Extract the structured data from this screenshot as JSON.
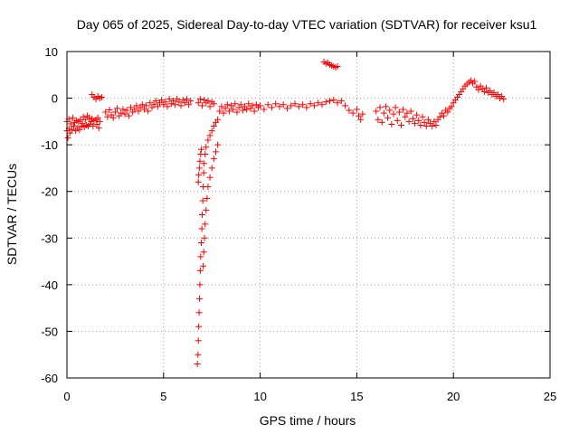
{
  "chart_data": {
    "type": "scatter",
    "title": "Day 065 of 2025, Sidereal Day-to-day VTEC variation (SDTVAR) for receiver ksu1",
    "xlabel": "GPS time / hours",
    "ylabel": "SDTVAR / TECUs",
    "xlim": [
      0,
      25
    ],
    "ylim": [
      -60,
      10
    ],
    "xticks": [
      0,
      5,
      10,
      15,
      20,
      25
    ],
    "yticks": [
      10,
      0,
      -10,
      -20,
      -30,
      -40,
      -50,
      -60
    ],
    "xtick_labels": [
      "0",
      "5",
      "10",
      "15",
      "20",
      "25"
    ],
    "ytick_labels": [
      "10",
      "0",
      "-10",
      "-20",
      "-30",
      "-40",
      "-50",
      "-60"
    ],
    "grid": true,
    "marker": "+",
    "series": [
      {
        "name": "main trace",
        "color": "#ff0000",
        "points": [
          [
            0.0,
            -7.0
          ],
          [
            0.0,
            -5.0
          ],
          [
            0.05,
            -8.5
          ],
          [
            0.1,
            -6.5
          ],
          [
            0.1,
            -4.5
          ],
          [
            0.15,
            -7.5
          ],
          [
            0.2,
            -5.5
          ],
          [
            0.25,
            -6.8
          ],
          [
            0.3,
            -4.2
          ],
          [
            0.35,
            -6.0
          ],
          [
            0.4,
            -5.2
          ],
          [
            0.45,
            -7.0
          ],
          [
            0.5,
            -4.8
          ],
          [
            0.55,
            -6.4
          ],
          [
            0.6,
            -5.0
          ],
          [
            0.65,
            -6.8
          ],
          [
            0.7,
            -4.6
          ],
          [
            0.75,
            -6.0
          ],
          [
            0.8,
            -5.4
          ],
          [
            0.85,
            -4.0
          ],
          [
            0.9,
            -6.2
          ],
          [
            0.95,
            -4.6
          ],
          [
            1.0,
            -5.8
          ],
          [
            1.05,
            -3.8
          ],
          [
            1.1,
            -6.0
          ],
          [
            1.15,
            -4.2
          ],
          [
            1.2,
            -5.6
          ],
          [
            1.25,
            -5.0
          ],
          [
            1.3,
            -4.4
          ],
          [
            1.35,
            -6.0
          ],
          [
            1.4,
            -4.8
          ],
          [
            1.5,
            -4.6
          ],
          [
            1.55,
            -5.6
          ],
          [
            1.6,
            -4.2
          ],
          [
            1.65,
            -6.4
          ],
          [
            1.7,
            -5.0
          ],
          [
            2.0,
            -3.0
          ],
          [
            2.1,
            -4.0
          ],
          [
            2.2,
            -2.5
          ],
          [
            2.3,
            -3.6
          ],
          [
            2.4,
            -4.2
          ],
          [
            2.5,
            -3.0
          ],
          [
            2.6,
            -2.2
          ],
          [
            2.7,
            -3.8
          ],
          [
            2.8,
            -3.2
          ],
          [
            2.9,
            -2.4
          ],
          [
            3.0,
            -3.4
          ],
          [
            3.1,
            -2.6
          ],
          [
            3.2,
            -3.8
          ],
          [
            3.3,
            -2.0
          ],
          [
            3.4,
            -3.0
          ],
          [
            3.5,
            -2.4
          ],
          [
            3.6,
            -1.6
          ],
          [
            3.7,
            -2.8
          ],
          [
            3.8,
            -2.0
          ],
          [
            3.9,
            -1.4
          ],
          [
            4.0,
            -2.4
          ],
          [
            4.1,
            -1.6
          ],
          [
            4.2,
            -2.8
          ],
          [
            4.3,
            -1.0
          ],
          [
            4.4,
            -2.0
          ],
          [
            4.5,
            -1.4
          ],
          [
            4.6,
            -0.6
          ],
          [
            4.7,
            -1.8
          ],
          [
            4.8,
            -1.0
          ],
          [
            4.9,
            -0.4
          ],
          [
            5.0,
            -1.4
          ],
          [
            5.1,
            -0.8
          ],
          [
            5.2,
            -1.8
          ],
          [
            5.3,
            -0.2
          ],
          [
            5.4,
            -1.2
          ],
          [
            5.5,
            -0.6
          ],
          [
            5.6,
            -1.4
          ],
          [
            5.7,
            -0.2
          ],
          [
            5.8,
            -0.8
          ],
          [
            5.9,
            -1.6
          ],
          [
            6.0,
            -0.4
          ],
          [
            6.1,
            -1.0
          ],
          [
            6.2,
            -0.2
          ],
          [
            6.3,
            -1.4
          ],
          [
            6.4,
            -0.6
          ],
          [
            6.8,
            -1.0
          ],
          [
            6.9,
            -0.2
          ],
          [
            7.0,
            -1.6
          ],
          [
            7.1,
            -0.4
          ],
          [
            7.2,
            -1.0
          ],
          [
            7.3,
            -0.6
          ],
          [
            7.4,
            -1.8
          ],
          [
            7.5,
            -0.8
          ],
          [
            7.6,
            -1.2
          ],
          [
            7.9,
            -2.8
          ],
          [
            8.0,
            -1.8
          ],
          [
            8.1,
            -3.2
          ],
          [
            8.2,
            -2.2
          ],
          [
            8.3,
            -1.4
          ],
          [
            8.4,
            -2.8
          ],
          [
            8.5,
            -1.6
          ],
          [
            8.6,
            -2.4
          ],
          [
            8.7,
            -1.2
          ],
          [
            8.8,
            -3.0
          ],
          [
            8.9,
            -2.0
          ],
          [
            9.0,
            -1.4
          ],
          [
            9.1,
            -2.6
          ],
          [
            9.2,
            -1.8
          ],
          [
            9.3,
            -2.4
          ],
          [
            9.4,
            -1.2
          ],
          [
            9.5,
            -2.2
          ],
          [
            9.6,
            -1.6
          ],
          [
            9.7,
            -2.8
          ],
          [
            9.8,
            -1.4
          ],
          [
            9.9,
            -2.0
          ],
          [
            10.0,
            -1.6
          ],
          [
            10.2,
            -2.4
          ],
          [
            10.4,
            -1.4
          ],
          [
            10.6,
            -2.0
          ],
          [
            10.8,
            -1.2
          ],
          [
            11.0,
            -1.8
          ],
          [
            11.2,
            -1.4
          ],
          [
            11.4,
            -2.2
          ],
          [
            11.6,
            -1.6
          ],
          [
            11.8,
            -1.2
          ],
          [
            12.0,
            -1.8
          ],
          [
            12.2,
            -1.4
          ],
          [
            12.4,
            -2.0
          ],
          [
            12.6,
            -1.2
          ],
          [
            12.8,
            -1.6
          ],
          [
            13.0,
            -1.0
          ],
          [
            13.2,
            -1.4
          ],
          [
            13.4,
            -0.8
          ],
          [
            13.6,
            -0.6
          ],
          [
            13.8,
            -0.4
          ],
          [
            14.0,
            -1.0
          ],
          [
            14.2,
            -0.6
          ],
          [
            14.4,
            -1.6
          ],
          [
            14.6,
            -2.6
          ],
          [
            14.8,
            -3.2
          ],
          [
            15.0,
            -2.4
          ],
          [
            15.1,
            -3.8
          ],
          [
            15.2,
            -4.6
          ],
          [
            15.3,
            -3.4
          ],
          [
            16.0,
            -2.8
          ],
          [
            16.1,
            -4.6
          ],
          [
            16.2,
            -2.0
          ],
          [
            16.3,
            -5.2
          ],
          [
            16.4,
            -3.2
          ],
          [
            16.5,
            -1.8
          ],
          [
            16.6,
            -4.2
          ],
          [
            16.7,
            -2.6
          ],
          [
            16.8,
            -5.6
          ],
          [
            16.9,
            -3.4
          ],
          [
            17.0,
            -2.0
          ],
          [
            17.1,
            -4.8
          ],
          [
            17.2,
            -3.0
          ],
          [
            17.3,
            -5.8
          ],
          [
            17.4,
            -2.4
          ],
          [
            17.5,
            -4.0
          ],
          [
            17.6,
            -3.2
          ],
          [
            17.7,
            -5.0
          ],
          [
            17.8,
            -2.8
          ],
          [
            17.9,
            -4.4
          ],
          [
            18.0,
            -5.4
          ],
          [
            18.1,
            -3.6
          ],
          [
            18.2,
            -4.8
          ],
          [
            18.3,
            -5.8
          ],
          [
            18.4,
            -4.0
          ],
          [
            18.5,
            -5.2
          ],
          [
            18.6,
            -6.0
          ],
          [
            18.7,
            -4.6
          ],
          [
            18.8,
            -5.4
          ],
          [
            18.9,
            -6.0
          ],
          [
            19.0,
            -5.0
          ],
          [
            19.1,
            -5.8
          ],
          [
            19.2,
            -4.6
          ],
          [
            19.3,
            -4.0
          ],
          [
            19.4,
            -3.2
          ],
          [
            19.5,
            -3.8
          ],
          [
            19.6,
            -2.6
          ],
          [
            19.7,
            -3.0
          ],
          [
            19.8,
            -2.2
          ],
          [
            19.9,
            -1.8
          ],
          [
            20.0,
            -1.0
          ],
          [
            20.1,
            -0.4
          ],
          [
            20.2,
            0.2
          ],
          [
            20.3,
            0.8
          ],
          [
            20.4,
            1.4
          ],
          [
            20.5,
            2.0
          ],
          [
            20.6,
            2.6
          ],
          [
            20.7,
            3.0
          ],
          [
            20.8,
            3.4
          ],
          [
            20.9,
            3.8
          ],
          [
            21.0,
            3.2
          ],
          [
            21.1,
            3.6
          ],
          [
            21.2,
            2.4
          ],
          [
            21.3,
            1.8
          ],
          [
            21.4,
            2.6
          ],
          [
            21.5,
            2.0
          ],
          [
            21.6,
            1.4
          ],
          [
            21.7,
            2.2
          ],
          [
            21.8,
            1.2
          ],
          [
            21.9,
            1.6
          ],
          [
            22.0,
            0.8
          ],
          [
            22.1,
            1.2
          ],
          [
            22.2,
            0.4
          ],
          [
            22.3,
            0.8
          ],
          [
            22.4,
            0.0
          ],
          [
            22.5,
            0.4
          ],
          [
            22.6,
            -0.2
          ]
        ]
      },
      {
        "name": "spike left branch",
        "color": "#ff0000",
        "points": [
          [
            6.75,
            -57.0
          ],
          [
            6.78,
            -55.0
          ],
          [
            6.8,
            -52.0
          ],
          [
            6.82,
            -49.0
          ],
          [
            6.84,
            -46.0
          ],
          [
            6.86,
            -43.0
          ],
          [
            6.88,
            -40.0
          ],
          [
            6.9,
            -37.0
          ],
          [
            6.92,
            -34.0
          ],
          [
            6.95,
            -31.0
          ],
          [
            6.98,
            -28.0
          ],
          [
            7.0,
            -25.0
          ],
          [
            7.03,
            -22.0
          ],
          [
            7.05,
            -19.0
          ],
          [
            7.08,
            -16.0
          ],
          [
            7.1,
            -14.0
          ],
          [
            7.15,
            -12.0
          ],
          [
            7.2,
            -10.5
          ],
          [
            7.3,
            -9.0
          ],
          [
            7.4,
            -8.0
          ],
          [
            7.5,
            -7.0
          ],
          [
            7.6,
            -6.0
          ],
          [
            7.7,
            -5.2
          ],
          [
            7.8,
            -4.6
          ],
          [
            6.8,
            -18.0
          ],
          [
            6.82,
            -16.5
          ],
          [
            6.85,
            -15.0
          ],
          [
            6.88,
            -13.5
          ],
          [
            6.92,
            -12.0
          ],
          [
            6.95,
            -11.0
          ]
        ]
      },
      {
        "name": "spike right branch",
        "color": "#ff0000",
        "points": [
          [
            7.05,
            -36.0
          ],
          [
            7.08,
            -33.0
          ],
          [
            7.12,
            -30.0
          ],
          [
            7.15,
            -27.0
          ],
          [
            7.2,
            -24.0
          ],
          [
            7.25,
            -21.5
          ],
          [
            7.3,
            -19.0
          ],
          [
            7.4,
            -17.0
          ],
          [
            7.5,
            -15.0
          ],
          [
            7.6,
            -13.0
          ],
          [
            7.7,
            -11.5
          ],
          [
            7.8,
            -10.0
          ]
        ]
      },
      {
        "name": "isolated segments",
        "color": "#ff0000",
        "points": [
          [
            1.3,
            0.8
          ],
          [
            1.4,
            0.2
          ],
          [
            1.5,
            -0.2
          ],
          [
            1.6,
            0.4
          ],
          [
            1.7,
            0.0
          ],
          [
            1.8,
            0.2
          ],
          [
            13.3,
            7.8
          ],
          [
            13.4,
            7.4
          ],
          [
            13.5,
            7.6
          ],
          [
            13.6,
            7.2
          ],
          [
            13.7,
            7.0
          ],
          [
            13.8,
            6.8
          ],
          [
            13.9,
            6.6
          ],
          [
            14.0,
            6.8
          ]
        ]
      }
    ]
  }
}
